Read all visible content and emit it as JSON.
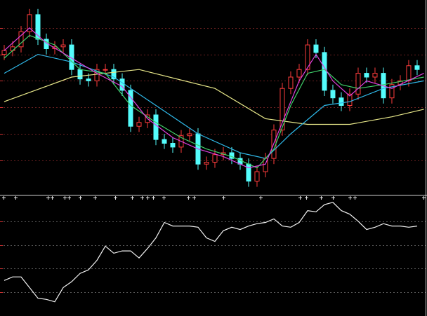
{
  "chart_data": [
    {
      "type": "candlestick",
      "xlim": [
        -0.5,
        50.17
      ],
      "ylim": [
        0,
        100
      ],
      "yticks": [
        16,
        30,
        44,
        58,
        72,
        86
      ],
      "grid": true,
      "grid_color": "#6a2020",
      "up_color": "#ff3c3c",
      "down_color": "#54fcfc",
      "x": [
        0,
        1,
        2,
        3,
        4,
        5,
        6,
        7,
        8,
        9,
        10,
        11,
        12,
        13,
        14,
        15,
        16,
        17,
        18,
        19,
        20,
        21,
        22,
        23,
        24,
        25,
        26,
        27,
        28,
        29,
        30,
        31,
        32,
        33,
        34,
        35,
        36,
        37,
        38,
        39,
        40,
        41,
        42,
        43,
        44,
        45,
        46,
        47,
        48,
        49
      ],
      "open": [
        72,
        74,
        76,
        84,
        93,
        80,
        75,
        76,
        77,
        64,
        59,
        58,
        64,
        64,
        59,
        53,
        34,
        36,
        40,
        27,
        25,
        23,
        29,
        30,
        14,
        15,
        19,
        20,
        17,
        14,
        5,
        10,
        17,
        32,
        54,
        60,
        64,
        77,
        73,
        53,
        49,
        45,
        51,
        62,
        60,
        62,
        49,
        56,
        58,
        66
      ],
      "close": [
        74,
        76,
        84,
        93,
        80,
        75,
        76,
        77,
        64,
        59,
        58,
        64,
        64,
        59,
        53,
        34,
        36,
        40,
        27,
        25,
        23,
        29,
        30,
        14,
        15,
        19,
        20,
        17,
        14,
        5,
        10,
        17,
        32,
        54,
        60,
        64,
        77,
        73,
        53,
        49,
        45,
        51,
        62,
        60,
        62,
        49,
        56,
        58,
        66,
        64
      ],
      "high": [
        77,
        79,
        87,
        96,
        96,
        83,
        79,
        80,
        80,
        67,
        62,
        67,
        67,
        67,
        62,
        56,
        39,
        43,
        43,
        30,
        28,
        32,
        33,
        33,
        18,
        22,
        23,
        23,
        20,
        17,
        13,
        20,
        35,
        57,
        63,
        67,
        80,
        80,
        76,
        56,
        52,
        54,
        65,
        65,
        65,
        65,
        59,
        61,
        69,
        69
      ],
      "low": [
        69,
        71,
        73,
        81,
        77,
        72,
        72,
        73,
        61,
        56,
        55,
        55,
        61,
        56,
        50,
        31,
        31,
        33,
        24,
        22,
        20,
        20,
        26,
        11,
        11,
        12,
        16,
        14,
        11,
        2,
        2,
        7,
        14,
        29,
        51,
        57,
        61,
        70,
        50,
        46,
        42,
        42,
        48,
        57,
        57,
        46,
        46,
        53,
        55,
        61
      ],
      "series": [
        {
          "color": "#e8e88a",
          "x": [
            0,
            8,
            16,
            25,
            31,
            36,
            41,
            46,
            49.8
          ],
          "values": [
            47,
            60,
            64,
            54,
            38,
            35,
            35,
            39,
            43
          ]
        },
        {
          "color": "#2fb8e8",
          "x": [
            0,
            4,
            8,
            13,
            18,
            23,
            28,
            31,
            34,
            38,
            41,
            45,
            49.8
          ],
          "values": [
            62,
            72,
            68,
            60,
            45,
            30,
            20,
            17,
            30,
            45,
            47,
            54,
            58
          ]
        },
        {
          "color": "#3fd06a",
          "x": [
            0,
            3,
            6,
            9,
            12,
            15,
            18,
            21,
            24,
            27,
            30,
            32,
            34,
            36,
            38,
            40,
            42,
            45,
            49.8
          ],
          "values": [
            70,
            82,
            77,
            64,
            62,
            45,
            36,
            28,
            22,
            18,
            12,
            22,
            45,
            62,
            64,
            56,
            54,
            56,
            60
          ]
        },
        {
          "color": "#e040e0",
          "x": [
            0,
            3,
            5,
            8,
            11,
            14,
            17,
            20,
            23,
            26,
            29,
            31,
            33,
            35,
            37,
            39,
            41,
            43,
            46,
            49.8
          ],
          "values": [
            74,
            86,
            78,
            70,
            62,
            55,
            38,
            28,
            22,
            18,
            12,
            14,
            36,
            58,
            72,
            58,
            50,
            58,
            54,
            62
          ]
        }
      ]
    },
    {
      "type": "line",
      "xlim": [
        -0.5,
        50.17
      ],
      "ylim": [
        0,
        100
      ],
      "yticks": [
        20,
        40,
        60,
        80
      ],
      "grid": true,
      "grid_color": "#5a5a5a",
      "color": "#f2f2f2",
      "x": [
        0,
        1,
        2,
        3,
        4,
        5,
        6,
        7,
        8,
        9,
        10,
        11,
        12,
        13,
        14,
        15,
        16,
        17,
        18,
        19,
        20,
        21,
        22,
        23,
        24,
        25,
        26,
        27,
        28,
        29,
        30,
        31,
        32,
        33,
        34,
        35,
        36,
        37,
        38,
        39,
        40,
        41,
        42,
        43,
        44,
        45,
        46,
        47,
        48,
        49
      ],
      "values": [
        30,
        33,
        33,
        24,
        15,
        14,
        12,
        24,
        29,
        36,
        39,
        47,
        59,
        53,
        55,
        55,
        49,
        57,
        66,
        79,
        76,
        76,
        76,
        75,
        66,
        63,
        72,
        75,
        73,
        76,
        78,
        79,
        82,
        76,
        75,
        79,
        89,
        88,
        94,
        96,
        89,
        86,
        80,
        73,
        75,
        78,
        76,
        76,
        75,
        76
      ]
    }
  ]
}
